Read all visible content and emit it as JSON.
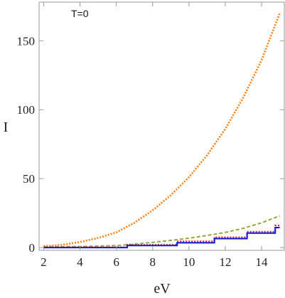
{
  "chart_data": {
    "type": "line",
    "title": "",
    "annotation": "T=0",
    "xlabel": "eV",
    "ylabel": "I",
    "xlim": [
      1.75,
      15.25
    ],
    "ylim": [
      -2,
      178
    ],
    "x_ticks": [
      2,
      4,
      6,
      8,
      10,
      12,
      14
    ],
    "y_ticks": [
      0,
      50,
      100,
      150
    ],
    "grid": false,
    "legend": "none",
    "series": [
      {
        "color": "#ff7f0e",
        "style": "dotted",
        "x": [
          2,
          3,
          4,
          5,
          6,
          7,
          8,
          9,
          10,
          11,
          12,
          13,
          14,
          15
        ],
        "y": [
          1,
          2,
          4,
          7,
          11,
          18,
          27,
          38,
          51,
          67,
          86,
          109,
          136,
          170
        ]
      },
      {
        "color": "#9aa83a",
        "style": "dashed",
        "x": [
          2,
          4,
          6,
          7,
          8,
          9,
          10,
          11,
          12,
          13,
          14,
          15
        ],
        "y": [
          0.5,
          0.8,
          1.5,
          2.5,
          3.8,
          5.2,
          6.8,
          8.8,
          11,
          14,
          18,
          23
        ]
      },
      {
        "color": "#e8202a",
        "style": "dotted-step",
        "x": [
          2,
          6.6,
          6.6,
          9.35,
          9.35,
          11.4,
          11.4,
          13.2,
          13.2,
          14.75,
          14.75,
          15
        ],
        "y": [
          0.3,
          0.3,
          2,
          2,
          4.5,
          4.5,
          7.5,
          7.5,
          11.5,
          11.5,
          16,
          16
        ]
      },
      {
        "color": "#0a1adb",
        "style": "solid-step",
        "x": [
          2,
          6.6,
          6.6,
          9.35,
          9.35,
          11.4,
          11.4,
          13.2,
          13.2,
          14.75,
          14.75,
          15
        ],
        "y": [
          0,
          0,
          1.5,
          1.5,
          3.5,
          3.5,
          6.5,
          6.5,
          10.5,
          10.5,
          14.5,
          14.5
        ]
      }
    ]
  }
}
